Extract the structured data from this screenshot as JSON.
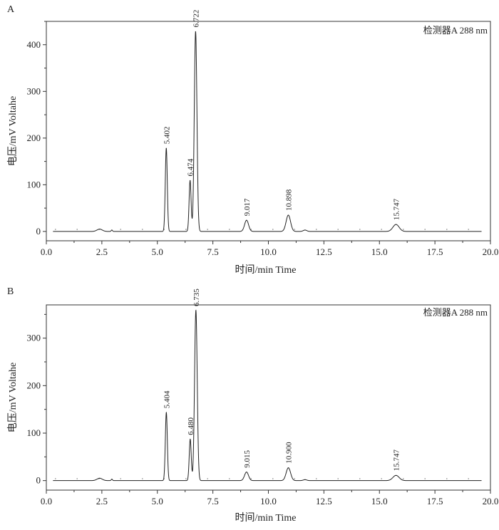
{
  "chart_data": [
    {
      "type": "line",
      "panel": "A",
      "detector_label": "检测器A 288 nm",
      "xlabel": "时间/min Time",
      "ylabel": "电压/mV Voltahe",
      "xlim": [
        0,
        20
      ],
      "ylim": [
        -20,
        450
      ],
      "x_ticks": [
        "0.0",
        "2.5",
        "5.0",
        "7.5",
        "10.0",
        "12.5",
        "15.0",
        "17.5",
        "20.0"
      ],
      "y_ticks": [
        "0",
        "100",
        "200",
        "300",
        "400"
      ],
      "grid": false,
      "baseline_end": 19.6,
      "peaks": [
        {
          "rt": 2.4,
          "height": 5,
          "width": 0.12,
          "label": ""
        },
        {
          "rt": 2.95,
          "height": 3,
          "width": 0.03,
          "label": ""
        },
        {
          "rt": 5.402,
          "height": 178,
          "width": 0.045,
          "label": "5.402"
        },
        {
          "rt": 6.474,
          "height": 109,
          "width": 0.045,
          "label": "6.474"
        },
        {
          "rt": 6.722,
          "height": 428,
          "width": 0.06,
          "label": "6.722"
        },
        {
          "rt": 9.017,
          "height": 24,
          "width": 0.09,
          "label": "9.017"
        },
        {
          "rt": 10.898,
          "height": 35,
          "width": 0.1,
          "label": "10.898"
        },
        {
          "rt": 11.65,
          "height": 3,
          "width": 0.08,
          "label": ""
        },
        {
          "rt": 15.747,
          "height": 15,
          "width": 0.14,
          "label": "15.747"
        }
      ]
    },
    {
      "type": "line",
      "panel": "B",
      "detector_label": "检测器A 288 nm",
      "xlabel": "时间/min Time",
      "ylabel": "电压/mV Voltahe",
      "xlim": [
        0,
        20
      ],
      "ylim": [
        -20,
        370
      ],
      "x_ticks": [
        "0.0",
        "2.5",
        "5.0",
        "7.5",
        "10.0",
        "12.5",
        "15.0",
        "17.5",
        "20.0"
      ],
      "y_ticks": [
        "0",
        "100",
        "200",
        "300"
      ],
      "grid": false,
      "baseline_end": 19.6,
      "peaks": [
        {
          "rt": 2.4,
          "height": 5,
          "width": 0.12,
          "label": ""
        },
        {
          "rt": 2.95,
          "height": 3,
          "width": 0.03,
          "label": ""
        },
        {
          "rt": 5.404,
          "height": 143,
          "width": 0.045,
          "label": "5.404"
        },
        {
          "rt": 6.48,
          "height": 87,
          "width": 0.045,
          "label": "6.480"
        },
        {
          "rt": 6.735,
          "height": 358,
          "width": 0.06,
          "label": "6.735"
        },
        {
          "rt": 9.015,
          "height": 18,
          "width": 0.09,
          "label": "9.015"
        },
        {
          "rt": 10.9,
          "height": 27,
          "width": 0.1,
          "label": "10.900"
        },
        {
          "rt": 11.65,
          "height": 2,
          "width": 0.08,
          "label": ""
        },
        {
          "rt": 15.747,
          "height": 11,
          "width": 0.14,
          "label": "15.747"
        }
      ]
    }
  ]
}
